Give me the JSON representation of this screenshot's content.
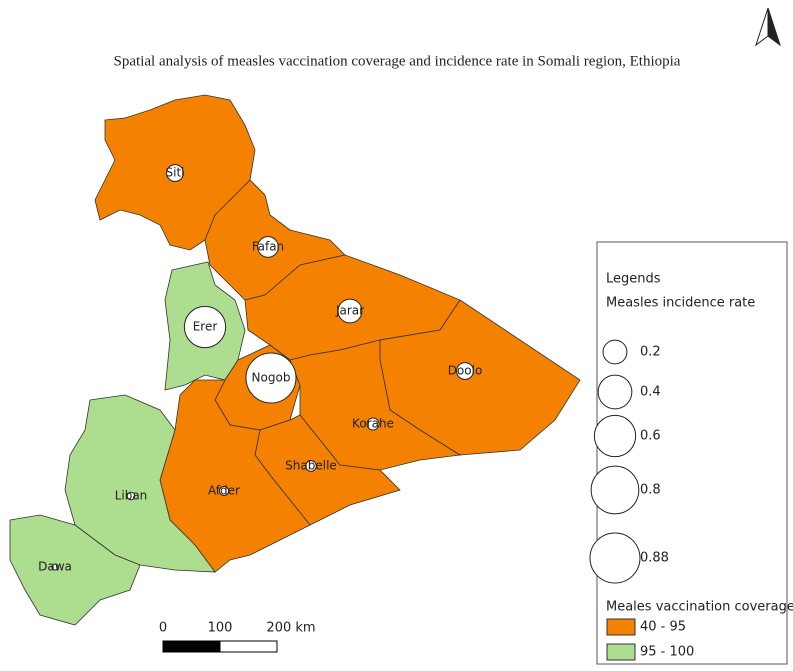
{
  "title": "Spatial analysis of measles vaccination coverage and incidence rate in Somali region, Ethiopia",
  "zones": [
    {
      "label": "Siti",
      "incidence": 0.1,
      "color": "#f58100"
    },
    {
      "label": "Fafan",
      "incidence": 0.15,
      "color": "#f58100"
    },
    {
      "label": "Erer",
      "incidence": 0.6,
      "color": "#addd8e"
    },
    {
      "label": "Jarar",
      "incidence": 0.2,
      "color": "#f58100"
    },
    {
      "label": "Nogob",
      "incidence": 0.88,
      "color": "#f58100"
    },
    {
      "label": "Doolo",
      "incidence": 0.1,
      "color": "#f58100"
    },
    {
      "label": "Korahe",
      "incidence": 0.05,
      "color": "#f58100"
    },
    {
      "label": "Shabelle",
      "incidence": 0.04,
      "color": "#f58100"
    },
    {
      "label": "Afder",
      "incidence": 0.03,
      "color": "#f58100"
    },
    {
      "label": "Liban",
      "incidence": 0.02,
      "color": "#addd8e"
    },
    {
      "label": "Dawa",
      "incidence": 0.01,
      "color": "#addd8e"
    }
  ],
  "legend": {
    "title": "Legends",
    "size_title": "Measles incidence rate",
    "sizes": [
      0.2,
      0.4,
      0.6,
      0.8,
      0.88
    ],
    "color_title": "Meales vaccination coverage",
    "classes": [
      {
        "label": "40 - 95",
        "color": "#f58100"
      },
      {
        "label": "95 - 100",
        "color": "#addd8e"
      }
    ]
  },
  "scale_bar": {
    "ticks": [
      0,
      100,
      {
        "value": 200,
        "label": "200 km"
      }
    ]
  }
}
